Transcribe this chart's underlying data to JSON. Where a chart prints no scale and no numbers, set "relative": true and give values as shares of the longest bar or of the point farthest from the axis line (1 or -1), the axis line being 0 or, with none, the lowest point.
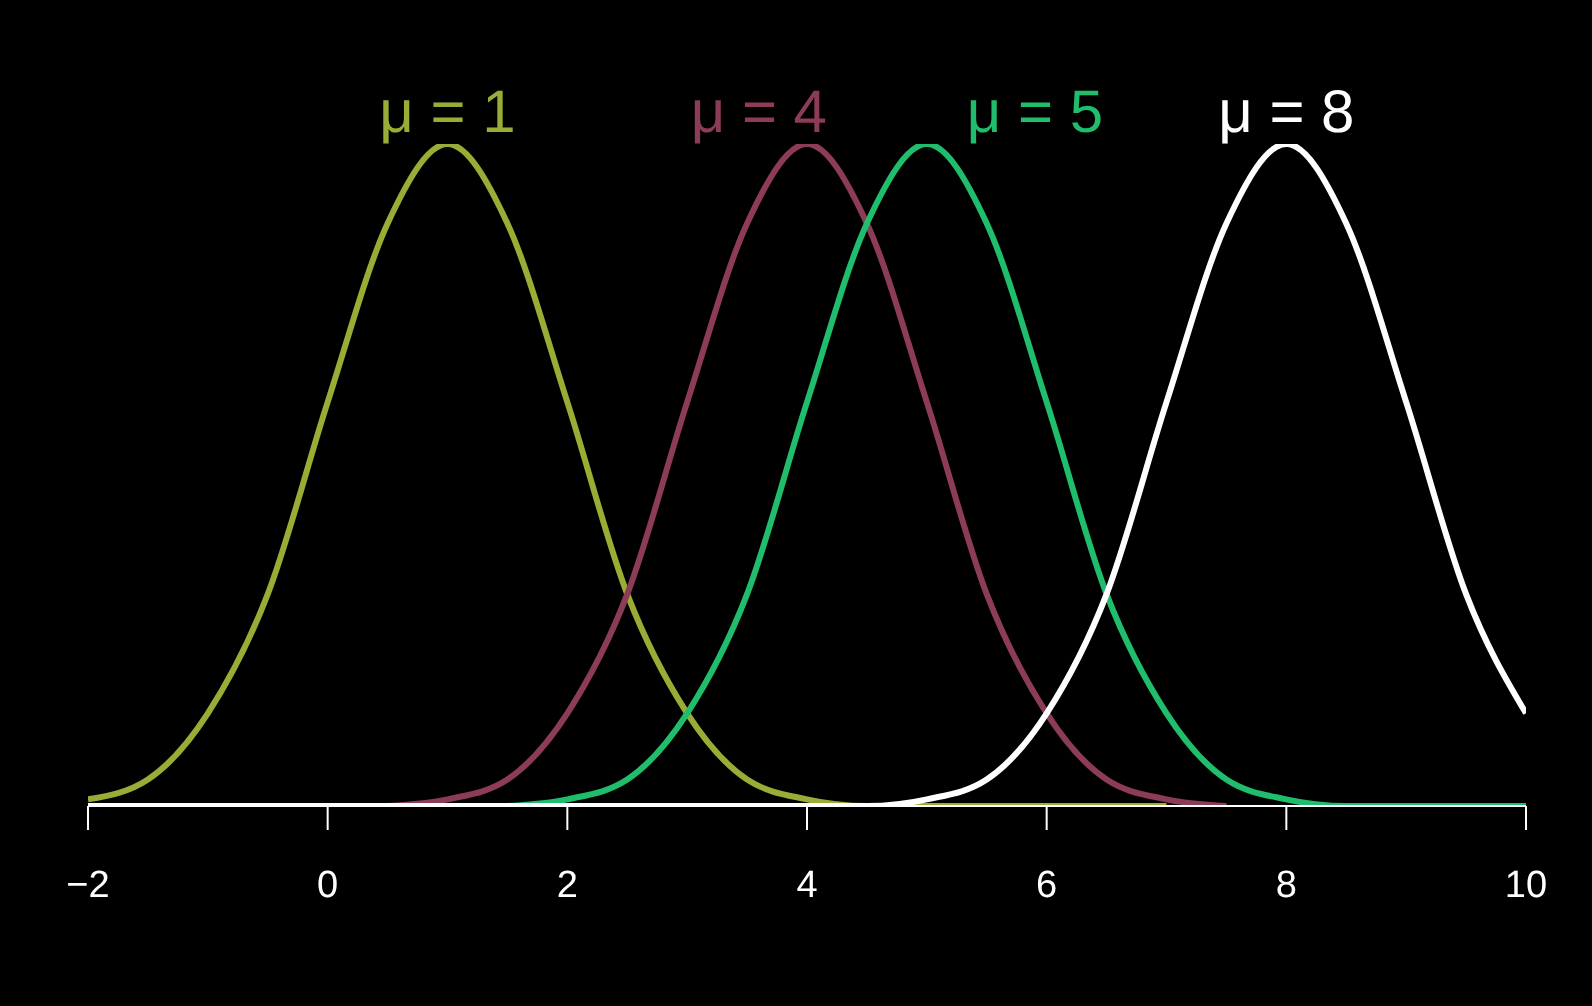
{
  "chart_data": {
    "type": "line",
    "relative": true,
    "x": [
      -2,
      -1.5,
      -1,
      -0.5,
      0,
      0.5,
      1,
      1.5,
      2,
      2.5,
      3,
      3.5,
      4,
      4.5,
      5,
      5.5,
      6,
      6.5,
      7,
      7.5,
      8,
      8.5,
      9,
      9.5,
      10
    ],
    "xlim": [
      -2,
      10
    ],
    "xticks": [
      -2,
      0,
      2,
      4,
      6,
      8,
      10
    ],
    "grid": false,
    "legend": false,
    "marker": "none",
    "line_style": "solid",
    "series": [
      {
        "name": "μ = 1",
        "color": "#9aac35",
        "values": [
          0.01,
          0.04,
          0.14,
          0.32,
          0.61,
          0.88,
          1,
          0.88,
          0.61,
          0.32,
          0.14,
          0.04,
          0.01,
          0,
          0,
          0,
          0,
          0,
          0,
          null,
          null,
          null,
          null,
          null,
          null
        ]
      },
      {
        "name": "μ = 4",
        "color": "#8c3c58",
        "values": [
          null,
          null,
          null,
          null,
          null,
          0,
          0.01,
          0.04,
          0.14,
          0.32,
          0.61,
          0.88,
          1,
          0.88,
          0.61,
          0.32,
          0.14,
          0.04,
          0.01,
          0,
          null,
          null,
          null,
          null,
          null
        ]
      },
      {
        "name": "μ = 5",
        "color": "#1fbd6c",
        "values": [
          null,
          null,
          null,
          null,
          null,
          null,
          null,
          0,
          0.01,
          0.04,
          0.14,
          0.32,
          0.61,
          0.88,
          1,
          0.88,
          0.61,
          0.32,
          0.14,
          0.04,
          0.01,
          0,
          0,
          0,
          0
        ]
      },
      {
        "name": "μ = 8",
        "color": "#ffffff",
        "values": [
          0,
          0,
          0,
          0,
          0,
          0,
          0,
          0,
          0,
          0,
          0,
          0,
          0,
          0,
          0.01,
          0.04,
          0.14,
          0.32,
          0.61,
          0.88,
          1,
          0.88,
          0.61,
          0.32,
          0.14
        ]
      }
    ]
  }
}
